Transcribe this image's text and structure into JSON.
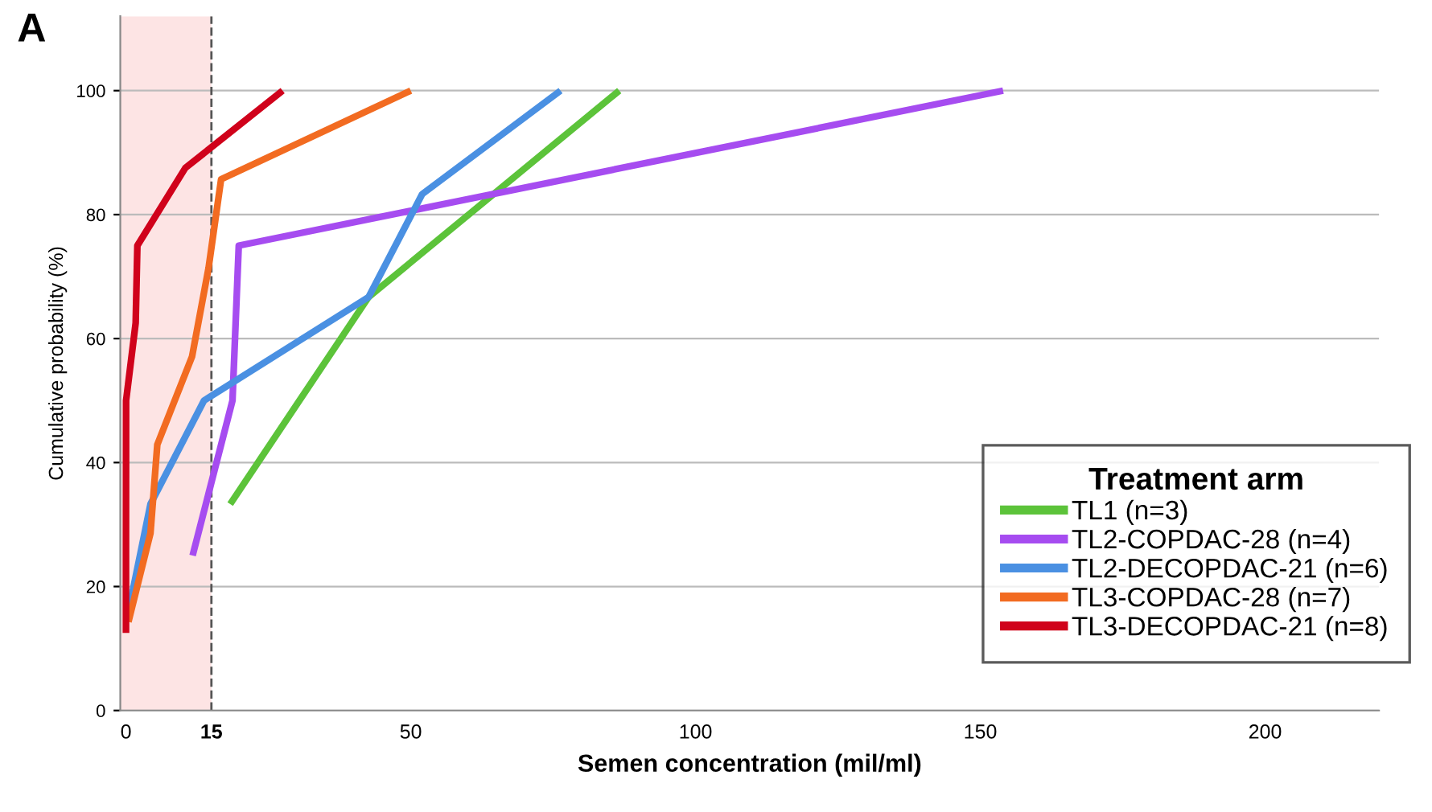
{
  "chart_data": {
    "type": "line",
    "xlabel": "Semen concentration (mil/ml)",
    "ylabel": "Cumulative probability (%)",
    "legend_title": "Treatment arm",
    "legend": "bottom right",
    "grid": "y",
    "marker": "none",
    "line_style": "solid",
    "xlim": [
      -1,
      220
    ],
    "ylim": [
      0,
      112
    ],
    "xticks": [
      0,
      15,
      50,
      100,
      150,
      200
    ],
    "yticks": [
      0,
      20,
      40,
      60,
      80,
      100
    ],
    "annotations": [
      "A"
    ],
    "ref_lines": [
      {
        "axis": "x",
        "value": 15,
        "line_style": "dashed",
        "color": "#555555"
      }
    ],
    "bands": [
      {
        "axis": "x",
        "from": -1,
        "to": 15,
        "color": "#fde4e4"
      }
    ],
    "series": [
      {
        "name": "TL1 (n=3)",
        "color": "#5cc33a",
        "x": [
          18.3,
          42.6,
          86.6
        ],
        "values": [
          33.3,
          66.7,
          100
        ]
      },
      {
        "name": "TL2-COPDAC-28 (n=4)",
        "color": "#a64cf0",
        "x": [
          11.7,
          18.7,
          19.8,
          154
        ],
        "values": [
          25,
          50,
          75,
          100
        ]
      },
      {
        "name": "TL2-DECOPDAC-21 (n=6)",
        "color": "#4a90e2",
        "x": [
          0.6,
          4.3,
          13.7,
          42.6,
          52,
          76.3
        ],
        "values": [
          16.7,
          33.3,
          50,
          66.7,
          83.3,
          100
        ]
      },
      {
        "name": "TL3-COPDAC-28 (n=7)",
        "color": "#f26b21",
        "x": [
          0.43,
          4.3,
          5.5,
          11.6,
          14.5,
          16.7,
          50
        ],
        "values": [
          14.3,
          28.6,
          42.9,
          57.1,
          71.4,
          85.7,
          100
        ]
      },
      {
        "name": "TL3-DECOPDAC-21 (n=8)",
        "color": "#d0021b",
        "x": [
          0,
          0,
          0.01,
          0.02,
          1.7,
          2,
          10.4,
          27.5
        ],
        "values": [
          12.5,
          25,
          37.5,
          50,
          62.5,
          75,
          87.5,
          100
        ]
      }
    ]
  }
}
